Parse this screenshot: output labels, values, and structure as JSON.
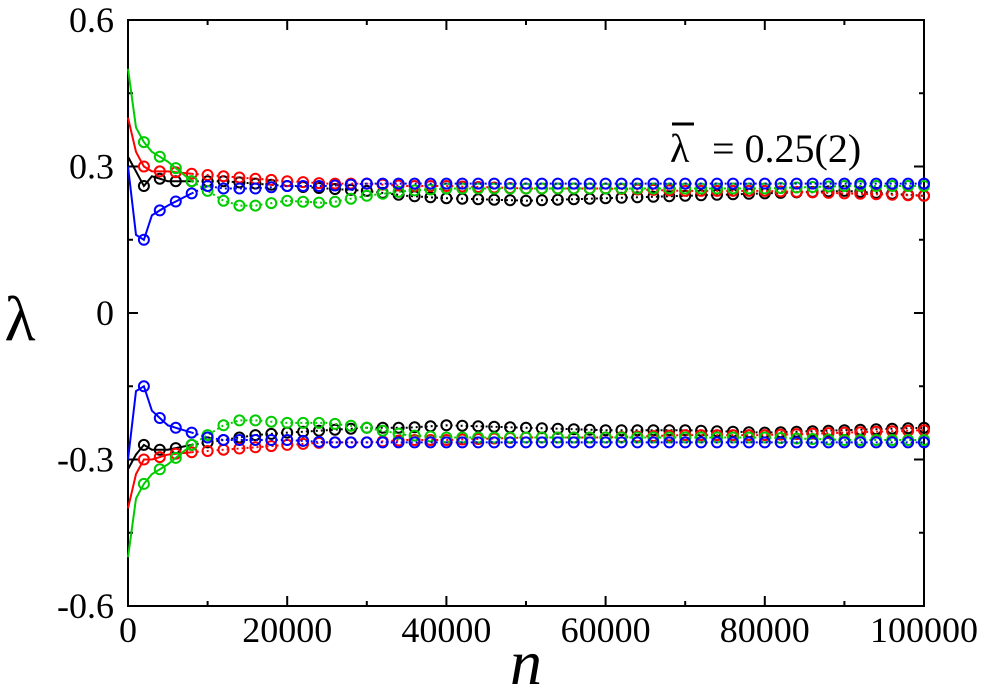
{
  "chart_data": {
    "type": "line",
    "title": "",
    "xlabel": "n",
    "ylabel": "λ",
    "xlim": [
      0,
      100000
    ],
    "ylim": [
      -0.6,
      0.6
    ],
    "xticks": [
      0,
      20000,
      40000,
      60000,
      80000,
      100000
    ],
    "xtick_labels": [
      "0",
      "20000",
      "40000",
      "60000",
      "80000",
      "100000"
    ],
    "yticks": [
      -0.6,
      -0.3,
      0,
      0.3,
      0.6
    ],
    "ytick_labels": [
      "-0.6",
      "-0.3",
      "0",
      "0.3",
      "0.6"
    ],
    "annotation": {
      "symbol": "λ",
      "text": "= 0.25(2)"
    },
    "marker_interval": 2000,
    "series": [
      {
        "name": "black",
        "color": "#000000",
        "x": [
          0,
          1000,
          2000,
          3000,
          5000,
          8000,
          12000,
          16000,
          20000,
          25000,
          30000,
          35000,
          40000,
          50000,
          60000,
          70000,
          80000,
          90000,
          100000
        ],
        "upper": [
          0.32,
          0.29,
          0.26,
          0.28,
          0.27,
          0.27,
          0.27,
          0.265,
          0.26,
          0.255,
          0.25,
          0.24,
          0.235,
          0.23,
          0.235,
          0.24,
          0.245,
          0.25,
          0.24
        ],
        "lower": [
          -0.32,
          -0.29,
          -0.27,
          -0.28,
          -0.28,
          -0.27,
          -0.26,
          -0.25,
          -0.245,
          -0.24,
          -0.235,
          -0.235,
          -0.23,
          -0.235,
          -0.24,
          -0.24,
          -0.245,
          -0.24,
          -0.235
        ]
      },
      {
        "name": "red",
        "color": "#ff0000",
        "x": [
          0,
          1000,
          2000,
          3000,
          5000,
          8000,
          12000,
          16000,
          20000,
          25000,
          30000,
          35000,
          40000,
          50000,
          60000,
          70000,
          80000,
          90000,
          100000
        ],
        "upper": [
          0.4,
          0.33,
          0.3,
          0.29,
          0.29,
          0.285,
          0.28,
          0.275,
          0.27,
          0.265,
          0.265,
          0.26,
          0.26,
          0.255,
          0.255,
          0.25,
          0.25,
          0.245,
          0.24
        ],
        "lower": [
          -0.4,
          -0.33,
          -0.3,
          -0.3,
          -0.29,
          -0.285,
          -0.28,
          -0.275,
          -0.27,
          -0.265,
          -0.265,
          -0.26,
          -0.26,
          -0.255,
          -0.255,
          -0.25,
          -0.25,
          -0.245,
          -0.24
        ]
      },
      {
        "name": "green",
        "color": "#00cc00",
        "x": [
          0,
          1000,
          2000,
          3000,
          5000,
          8000,
          10000,
          12000,
          14000,
          16000,
          20000,
          25000,
          30000,
          35000,
          40000,
          50000,
          60000,
          70000,
          80000,
          90000,
          100000
        ],
        "upper": [
          0.5,
          0.38,
          0.35,
          0.33,
          0.31,
          0.27,
          0.25,
          0.23,
          0.22,
          0.22,
          0.23,
          0.225,
          0.24,
          0.25,
          0.255,
          0.255,
          0.255,
          0.255,
          0.255,
          0.26,
          0.26
        ],
        "lower": [
          -0.5,
          -0.38,
          -0.35,
          -0.33,
          -0.31,
          -0.27,
          -0.25,
          -0.23,
          -0.22,
          -0.22,
          -0.225,
          -0.225,
          -0.235,
          -0.25,
          -0.255,
          -0.255,
          -0.255,
          -0.255,
          -0.255,
          -0.26,
          -0.26
        ]
      },
      {
        "name": "blue",
        "color": "#0000ff",
        "x": [
          0,
          1000,
          2000,
          3000,
          5000,
          8000,
          10000,
          12000,
          14000,
          16000,
          20000,
          25000,
          30000,
          35000,
          40000,
          50000,
          60000,
          70000,
          80000,
          90000,
          100000
        ],
        "upper": [
          0.3,
          0.16,
          0.15,
          0.2,
          0.22,
          0.245,
          0.26,
          0.255,
          0.255,
          0.255,
          0.26,
          0.26,
          0.265,
          0.265,
          0.265,
          0.265,
          0.265,
          0.265,
          0.265,
          0.265,
          0.265
        ],
        "lower": [
          -0.3,
          -0.16,
          -0.15,
          -0.2,
          -0.23,
          -0.245,
          -0.255,
          -0.26,
          -0.26,
          -0.26,
          -0.26,
          -0.265,
          -0.265,
          -0.265,
          -0.265,
          -0.265,
          -0.265,
          -0.265,
          -0.265,
          -0.265,
          -0.265
        ]
      }
    ]
  }
}
